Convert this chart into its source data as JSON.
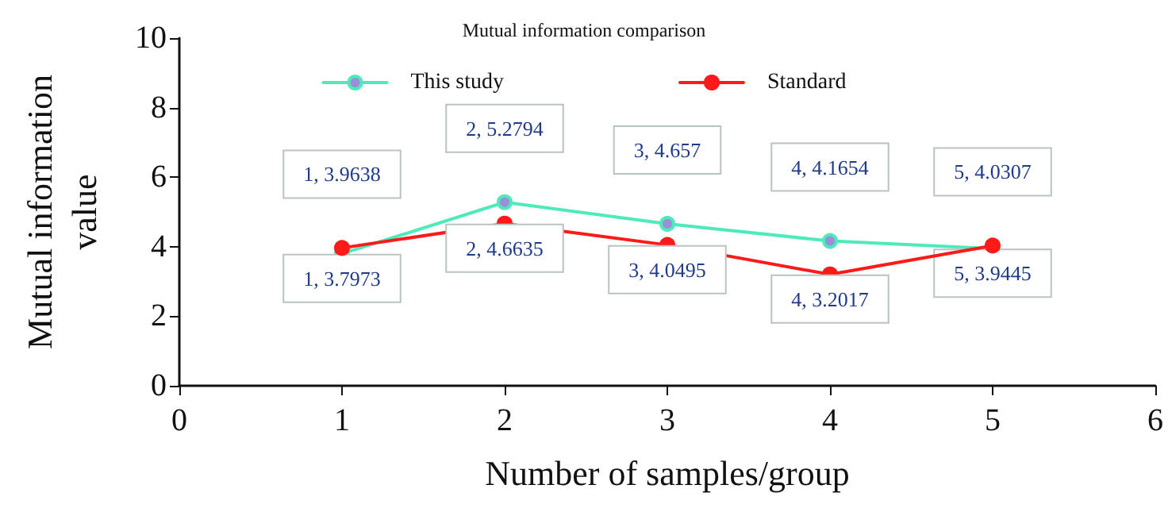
{
  "chart_data": {
    "type": "line",
    "title": "Mutual information comparison",
    "xlabel": "Number of samples/group",
    "ylabel": "Mutual information\nvalue",
    "x": [
      1,
      2,
      3,
      4,
      5
    ],
    "series": [
      {
        "name": "This study",
        "color": "#4eeab9",
        "values": [
          3.7973,
          5.2794,
          4.657,
          4.1654,
          3.9445
        ],
        "value_labels": [
          "1, 3.7973",
          "2, 5.2794",
          "3, 4.657",
          "4, 4.1654",
          "5, 3.9445"
        ]
      },
      {
        "name": "Standard",
        "color": "#ff1a1a",
        "values": [
          3.9638,
          4.6635,
          4.0495,
          3.2017,
          4.0307
        ],
        "value_labels": [
          "1, 3.9638",
          "2, 4.6635",
          "3, 4.0495",
          "4, 3.2017",
          "5, 4.0307"
        ]
      }
    ],
    "xlim": [
      0,
      6
    ],
    "xticks": [
      0,
      1,
      2,
      3,
      4,
      5,
      6
    ],
    "ylim": [
      0,
      10
    ],
    "yticks": [
      0,
      2,
      4,
      6,
      8,
      10
    ],
    "grid": false,
    "legend": "top",
    "marker": "circle",
    "line_style": "solid"
  }
}
